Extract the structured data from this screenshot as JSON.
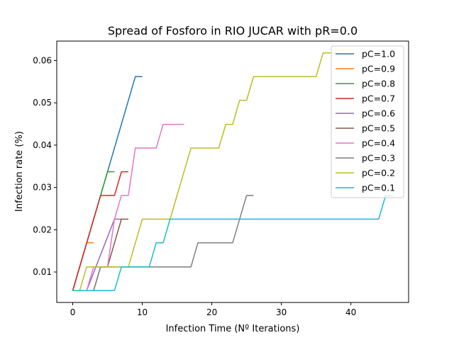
{
  "chart_data": {
    "type": "line",
    "title": "Spread of Fosforo in RIO JUCAR with pR=0.0",
    "xlabel": "Infection Time (Nº Iterations)",
    "ylabel": "Infection rate (%)",
    "xlim": [
      -2.3,
      48.3
    ],
    "ylim": [
      0.0028,
      0.0646
    ],
    "xticks": [
      0,
      10,
      20,
      30,
      40
    ],
    "xtick_labels": [
      "0",
      "10",
      "20",
      "30",
      "40"
    ],
    "yticks": [
      0.01,
      0.02,
      0.03,
      0.04,
      0.05,
      0.06
    ],
    "ytick_labels": [
      "0.01",
      "0.02",
      "0.03",
      "0.04",
      "0.05",
      "0.06"
    ],
    "grid": false,
    "legend_position": "top-right",
    "series": [
      {
        "name": "pC=1.0",
        "color": "#1f77b4",
        "points": [
          [
            0,
            0.0056
          ],
          [
            9,
            0.0562
          ],
          [
            10,
            0.0562
          ]
        ]
      },
      {
        "name": "pC=0.9",
        "color": "#ff7f0e",
        "points": [
          [
            0,
            0.0056
          ],
          [
            2,
            0.0169
          ],
          [
            3,
            0.0169
          ]
        ]
      },
      {
        "name": "pC=0.8",
        "color": "#2ca02c",
        "points": [
          [
            0,
            0.0056
          ],
          [
            5,
            0.0337
          ],
          [
            6,
            0.0337
          ]
        ]
      },
      {
        "name": "pC=0.7",
        "color": "#d62728",
        "points": [
          [
            0,
            0.0056
          ],
          [
            4,
            0.0281
          ],
          [
            6,
            0.0281
          ],
          [
            7,
            0.0337
          ],
          [
            8,
            0.0337
          ]
        ]
      },
      {
        "name": "pC=0.6",
        "color": "#9467bd",
        "points": [
          [
            0,
            0.0056
          ],
          [
            2,
            0.0056
          ],
          [
            6,
            0.0225
          ],
          [
            7,
            0.0225
          ]
        ]
      },
      {
        "name": "pC=0.5",
        "color": "#8c564b",
        "points": [
          [
            0,
            0.0056
          ],
          [
            3,
            0.0056
          ],
          [
            4,
            0.0112
          ],
          [
            5,
            0.0112
          ],
          [
            7,
            0.0225
          ],
          [
            8,
            0.0225
          ]
        ]
      },
      {
        "name": "pC=0.4",
        "color": "#e377c2",
        "points": [
          [
            0,
            0.0056
          ],
          [
            2,
            0.0056
          ],
          [
            3,
            0.0112
          ],
          [
            5,
            0.0112
          ],
          [
            6,
            0.0225
          ],
          [
            7,
            0.0281
          ],
          [
            8,
            0.0281
          ],
          [
            9,
            0.0393
          ],
          [
            12,
            0.0393
          ],
          [
            13,
            0.0449
          ],
          [
            16,
            0.0449
          ]
        ]
      },
      {
        "name": "pC=0.3",
        "color": "#7f7f7f",
        "points": [
          [
            0,
            0.0056
          ],
          [
            3,
            0.0056
          ],
          [
            4,
            0.0112
          ],
          [
            17,
            0.0112
          ],
          [
            18,
            0.0169
          ],
          [
            23,
            0.0169
          ],
          [
            25,
            0.0281
          ],
          [
            26,
            0.0281
          ]
        ]
      },
      {
        "name": "pC=0.2",
        "color": "#bcbd22",
        "points": [
          [
            0,
            0.0056
          ],
          [
            1,
            0.0056
          ],
          [
            2,
            0.0112
          ],
          [
            8,
            0.0112
          ],
          [
            10,
            0.0225
          ],
          [
            14,
            0.0225
          ],
          [
            17,
            0.0393
          ],
          [
            21,
            0.0393
          ],
          [
            22,
            0.0449
          ],
          [
            23,
            0.0449
          ],
          [
            24,
            0.0506
          ],
          [
            25,
            0.0506
          ],
          [
            26,
            0.0562
          ],
          [
            35,
            0.0562
          ],
          [
            36,
            0.0618
          ],
          [
            38,
            0.0618
          ]
        ]
      },
      {
        "name": "pC=0.1",
        "color": "#17becf",
        "points": [
          [
            0,
            0.0056
          ],
          [
            6,
            0.0056
          ],
          [
            7,
            0.0112
          ],
          [
            11,
            0.0112
          ],
          [
            12,
            0.0169
          ],
          [
            13,
            0.0169
          ],
          [
            14,
            0.0225
          ],
          [
            44,
            0.0225
          ],
          [
            45,
            0.0281
          ],
          [
            46,
            0.0281
          ]
        ]
      }
    ]
  }
}
